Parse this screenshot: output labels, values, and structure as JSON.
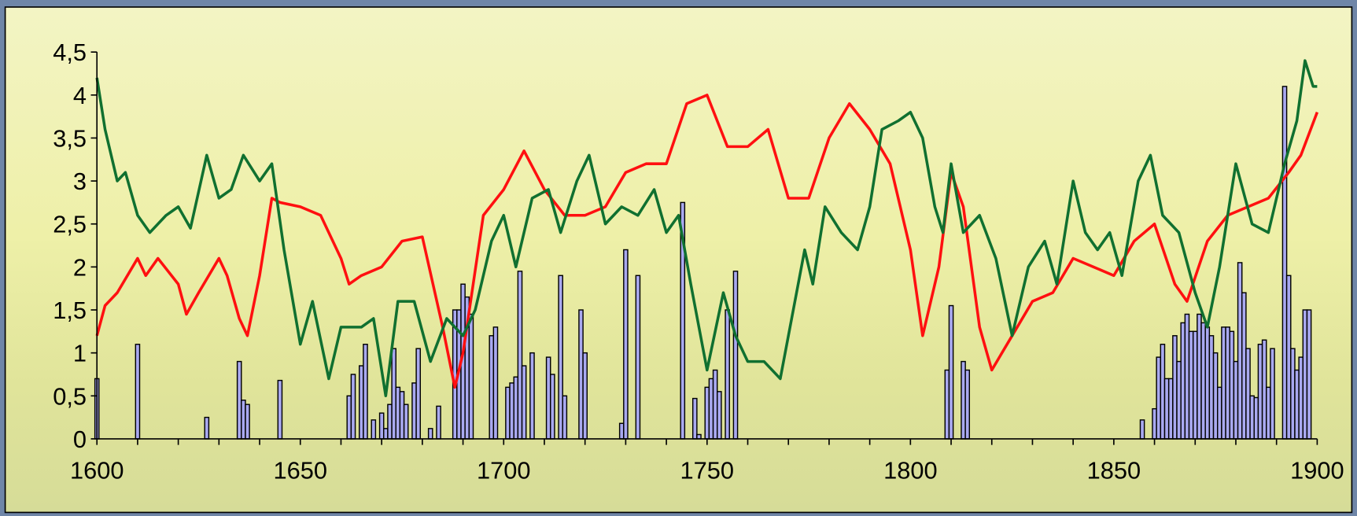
{
  "chart_data": {
    "type": "bar_line",
    "xlim": [
      1600,
      1900
    ],
    "xticks": [
      1600,
      1650,
      1700,
      1750,
      1800,
      1850,
      1900
    ],
    "xminor_ticks": [
      1610,
      1620,
      1630,
      1640,
      1660,
      1670,
      1680,
      1690,
      1710,
      1720,
      1730,
      1740,
      1760,
      1770,
      1780,
      1790,
      1810,
      1820,
      1830,
      1840,
      1860,
      1870,
      1880,
      1890
    ],
    "ylim": [
      0,
      4.5
    ],
    "yticks": [
      0,
      {
        "value": 0.5,
        "label": "0,5"
      },
      1,
      {
        "value": 1.5,
        "label": "1,5"
      },
      2,
      {
        "value": 2.5,
        "label": "2,5"
      },
      3,
      {
        "value": 3.5,
        "label": "3,5"
      },
      4,
      {
        "value": 4.5,
        "label": "4,5"
      }
    ],
    "series": [
      {
        "type": "bar",
        "color": "#a9a9f0",
        "x": [
          1600,
          1610,
          1627,
          1635,
          1636,
          1637,
          1645,
          1662,
          1663,
          1665,
          1666,
          1668,
          1670,
          1671,
          1672,
          1673,
          1674,
          1675,
          1676,
          1678,
          1679,
          1682,
          1684,
          1688,
          1689,
          1690,
          1691,
          1692,
          1697,
          1698,
          1701,
          1702,
          1703,
          1704,
          1705,
          1707,
          1711,
          1712,
          1714,
          1715,
          1719,
          1720,
          1729,
          1730,
          1733,
          1744,
          1747,
          1748,
          1750,
          1751,
          1752,
          1753,
          1755,
          1757,
          1809,
          1810,
          1813,
          1814,
          1857,
          1860,
          1861,
          1862,
          1863,
          1864,
          1865,
          1866,
          1867,
          1868,
          1869,
          1870,
          1871,
          1872,
          1873,
          1874,
          1875,
          1876,
          1877,
          1878,
          1879,
          1880,
          1881,
          1882,
          1883,
          1884,
          1885,
          1886,
          1887,
          1888,
          1889,
          1892,
          1893,
          1894,
          1895,
          1896,
          1897,
          1898
        ],
        "values": [
          0.7,
          1.1,
          0.25,
          0.9,
          0.45,
          0.4,
          0.68,
          0.5,
          0.75,
          0.85,
          1.1,
          0.22,
          0.3,
          0.12,
          0.4,
          1.05,
          0.6,
          0.55,
          0.4,
          0.65,
          1.05,
          0.12,
          0.38,
          1.5,
          1.5,
          1.8,
          1.65,
          1.45,
          1.2,
          1.3,
          0.6,
          0.65,
          0.72,
          1.95,
          0.85,
          1.0,
          0.95,
          0.75,
          1.9,
          0.5,
          1.5,
          1.0,
          0.18,
          2.2,
          1.9,
          2.75,
          0.47,
          0.05,
          0.6,
          0.7,
          0.8,
          0.55,
          1.5,
          1.95,
          0.8,
          1.55,
          0.9,
          0.8,
          0.22,
          0.35,
          0.95,
          1.1,
          0.7,
          0.7,
          1.2,
          0.9,
          1.35,
          1.45,
          1.25,
          1.25,
          1.45,
          1.35,
          1.3,
          1.2,
          1.0,
          0.6,
          1.3,
          1.3,
          1.25,
          0.9,
          2.05,
          1.7,
          1.05,
          0.5,
          0.48,
          1.1,
          1.15,
          0.6,
          1.05,
          4.1,
          1.9,
          1.05,
          0.8,
          0.95,
          1.5,
          1.5
        ]
      },
      {
        "type": "line",
        "color": "#ff1010",
        "x": [
          1600,
          1602,
          1605,
          1610,
          1612,
          1615,
          1620,
          1622,
          1625,
          1630,
          1632,
          1635,
          1637,
          1640,
          1643,
          1645,
          1650,
          1655,
          1660,
          1662,
          1665,
          1670,
          1675,
          1680,
          1685,
          1688,
          1690,
          1695,
          1700,
          1705,
          1710,
          1715,
          1720,
          1725,
          1730,
          1735,
          1740,
          1745,
          1750,
          1755,
          1760,
          1765,
          1770,
          1775,
          1780,
          1785,
          1790,
          1795,
          1800,
          1803,
          1807,
          1810,
          1813,
          1817,
          1820,
          1825,
          1830,
          1835,
          1840,
          1845,
          1850,
          1855,
          1860,
          1865,
          1868,
          1873,
          1878,
          1883,
          1888,
          1893,
          1896,
          1900
        ],
        "values": [
          1.2,
          1.55,
          1.7,
          2.1,
          1.9,
          2.1,
          1.8,
          1.45,
          1.7,
          2.1,
          1.9,
          1.4,
          1.2,
          1.9,
          2.8,
          2.75,
          2.7,
          2.6,
          2.1,
          1.8,
          1.9,
          2.0,
          2.3,
          2.35,
          1.3,
          0.6,
          1.0,
          2.6,
          2.9,
          3.35,
          2.9,
          2.6,
          2.6,
          2.7,
          3.1,
          3.2,
          3.2,
          3.9,
          4.0,
          3.4,
          3.4,
          3.6,
          2.8,
          2.8,
          3.5,
          3.9,
          3.6,
          3.2,
          2.2,
          1.2,
          2.0,
          3.1,
          2.7,
          1.3,
          0.8,
          1.2,
          1.6,
          1.7,
          2.1,
          2.0,
          1.9,
          2.3,
          2.5,
          1.8,
          1.6,
          2.3,
          2.6,
          2.7,
          2.8,
          3.1,
          3.3,
          3.8
        ]
      },
      {
        "type": "line",
        "color": "#107030",
        "x": [
          1600,
          1602,
          1605,
          1607,
          1610,
          1613,
          1617,
          1620,
          1623,
          1627,
          1630,
          1633,
          1636,
          1640,
          1643,
          1646,
          1650,
          1653,
          1657,
          1660,
          1665,
          1668,
          1671,
          1674,
          1678,
          1682,
          1686,
          1690,
          1693,
          1697,
          1700,
          1703,
          1707,
          1711,
          1714,
          1718,
          1721,
          1725,
          1729,
          1733,
          1737,
          1740,
          1743,
          1746,
          1750,
          1754,
          1757,
          1760,
          1764,
          1768,
          1770,
          1774,
          1776,
          1779,
          1783,
          1787,
          1790,
          1793,
          1797,
          1800,
          1803,
          1806,
          1808,
          1810,
          1813,
          1817,
          1821,
          1825,
          1829,
          1833,
          1836,
          1840,
          1843,
          1846,
          1849,
          1852,
          1856,
          1859,
          1862,
          1866,
          1870,
          1873,
          1876,
          1880,
          1884,
          1888,
          1892,
          1895,
          1897,
          1899,
          1900
        ],
        "values": [
          4.2,
          3.6,
          3.0,
          3.1,
          2.6,
          2.4,
          2.6,
          2.7,
          2.45,
          3.3,
          2.8,
          2.9,
          3.3,
          3.0,
          3.2,
          2.2,
          1.1,
          1.6,
          0.7,
          1.3,
          1.3,
          1.4,
          0.5,
          1.6,
          1.6,
          0.9,
          1.4,
          1.2,
          1.5,
          2.3,
          2.6,
          2.0,
          2.8,
          2.9,
          2.4,
          3.0,
          3.3,
          2.5,
          2.7,
          2.6,
          2.9,
          2.4,
          2.6,
          1.8,
          0.8,
          1.7,
          1.2,
          0.9,
          0.9,
          0.7,
          1.2,
          2.2,
          1.8,
          2.7,
          2.4,
          2.2,
          2.7,
          3.6,
          3.7,
          3.8,
          3.5,
          2.7,
          2.4,
          3.2,
          2.4,
          2.6,
          2.1,
          1.2,
          2.0,
          2.3,
          1.8,
          3.0,
          2.4,
          2.2,
          2.4,
          1.9,
          3.0,
          3.3,
          2.6,
          2.4,
          1.7,
          1.3,
          2.0,
          3.2,
          2.5,
          2.4,
          3.2,
          3.7,
          4.4,
          4.1,
          4.1
        ]
      }
    ]
  }
}
